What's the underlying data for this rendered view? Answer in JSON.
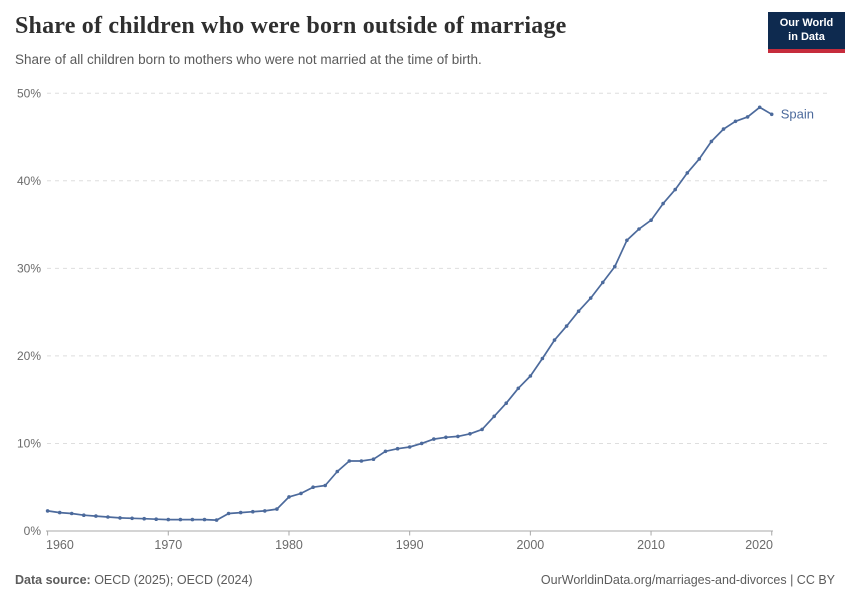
{
  "header": {
    "title": "Share of children who were born outside of marriage",
    "subtitle": "Share of all children born to mothers who were not married at the time of birth.",
    "logo": {
      "line1": "Our World",
      "line2": "in Data"
    }
  },
  "chart_data": {
    "type": "line",
    "title": "Share of children who were born outside of marriage",
    "xlabel": "",
    "ylabel": "",
    "xlim": [
      1960,
      2020
    ],
    "ylim": [
      0,
      50
    ],
    "grid": "horizontal-dashed",
    "legend_position": "end-of-line-label",
    "x_ticks": [
      "1960",
      "1970",
      "1980",
      "1990",
      "2000",
      "2010",
      "2020"
    ],
    "x_tick_years": [
      1960,
      1970,
      1980,
      1990,
      2000,
      2010,
      2020
    ],
    "y_ticks": [
      "0%",
      "10%",
      "20%",
      "30%",
      "40%",
      "50%"
    ],
    "y_tick_values": [
      0,
      10,
      20,
      30,
      40,
      50
    ],
    "series": [
      {
        "name": "Spain",
        "color": "#4C6A9C",
        "x": [
          1960,
          1961,
          1962,
          1963,
          1964,
          1965,
          1966,
          1967,
          1968,
          1969,
          1970,
          1971,
          1972,
          1973,
          1974,
          1975,
          1976,
          1977,
          1978,
          1979,
          1980,
          1981,
          1982,
          1983,
          1984,
          1985,
          1986,
          1987,
          1988,
          1989,
          1990,
          1991,
          1992,
          1993,
          1994,
          1995,
          1996,
          1997,
          1998,
          1999,
          2000,
          2001,
          2002,
          2003,
          2004,
          2005,
          2006,
          2007,
          2008,
          2009,
          2010,
          2011,
          2012,
          2013,
          2014,
          2015,
          2016,
          2017,
          2018,
          2019,
          2020
        ],
        "values": [
          2.3,
          2.1,
          2.0,
          1.8,
          1.7,
          1.6,
          1.5,
          1.45,
          1.4,
          1.35,
          1.3,
          1.3,
          1.3,
          1.3,
          1.25,
          2.0,
          2.1,
          2.2,
          2.3,
          2.5,
          3.9,
          4.3,
          5.0,
          5.2,
          6.8,
          8.0,
          8.0,
          8.2,
          9.1,
          9.4,
          9.6,
          10.0,
          10.5,
          10.7,
          10.8,
          11.1,
          11.6,
          13.1,
          14.6,
          16.3,
          17.7,
          19.7,
          21.8,
          23.4,
          25.1,
          26.6,
          28.4,
          30.2,
          33.2,
          34.5,
          35.5,
          37.4,
          39.0,
          40.9,
          42.5,
          44.5,
          45.9,
          46.8,
          47.3,
          48.4,
          47.6
        ]
      }
    ]
  },
  "footer": {
    "source_label": "Data source:",
    "source_text": " OECD (2025); OECD (2024)",
    "credit": "OurWorldinData.org/marriages-and-divorces | CC BY"
  },
  "colors": {
    "accent_line": "#4C6A9C",
    "logo_navy": "#0E2A4F",
    "logo_red": "#C62C3C",
    "gridline": "#DEDEDE",
    "axis": "#A8A8A8",
    "tick_label": "#6B6B6B"
  }
}
